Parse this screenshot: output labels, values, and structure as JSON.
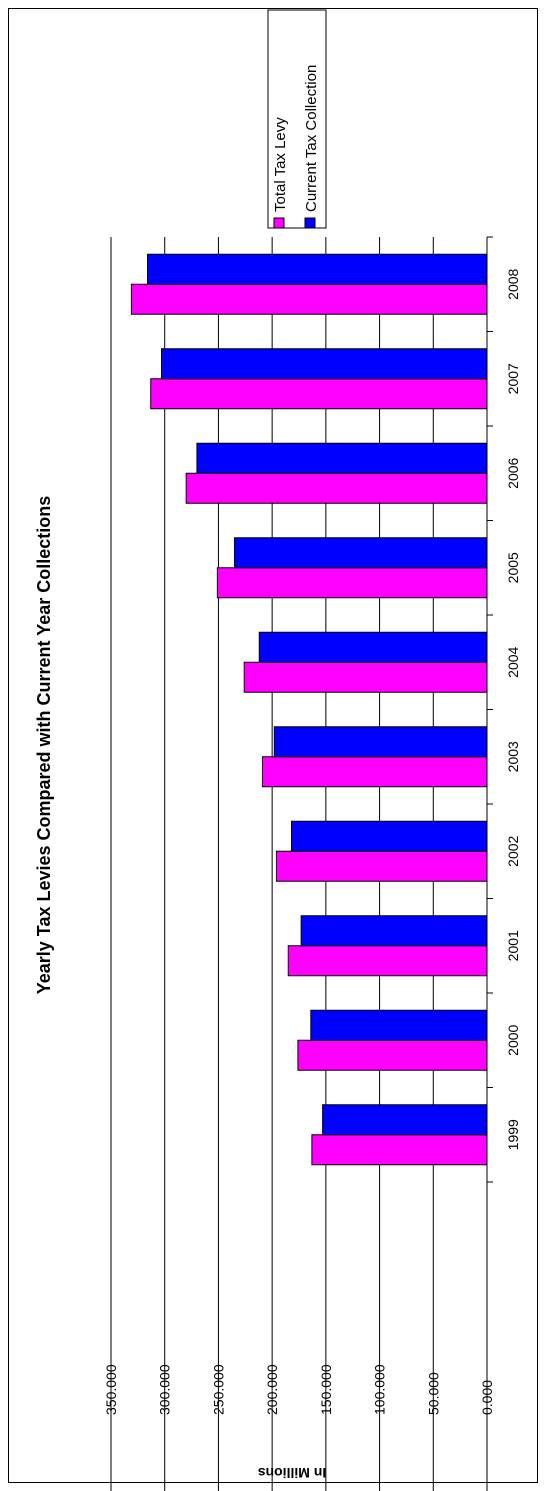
{
  "chart_data": {
    "type": "bar",
    "orientation": "rotated",
    "title": "Yearly Tax Levies Compared with Current Year Collections",
    "xlabel": "",
    "ylabel": "In Millions",
    "categories": [
      "1999",
      "2000",
      "2001",
      "2002",
      "2003",
      "2004",
      "2005",
      "2006",
      "2007",
      "2008"
    ],
    "series": [
      {
        "name": "Total Tax Levy",
        "color": "#ff00ff",
        "values": [
          163,
          176,
          185,
          196,
          209,
          226,
          251,
          280,
          313,
          331
        ]
      },
      {
        "name": "Current Tax Collection",
        "color": "#0000ff",
        "values": [
          153,
          164,
          173,
          182,
          198,
          212,
          235,
          270,
          303,
          316
        ]
      }
    ],
    "ylim": [
      0,
      350
    ],
    "yticks": [
      "0.000",
      "50.000",
      "100.000",
      "150.000",
      "200.000",
      "250.000",
      "300.000",
      "350.000"
    ],
    "grid": true,
    "legend_position": "top-right"
  }
}
